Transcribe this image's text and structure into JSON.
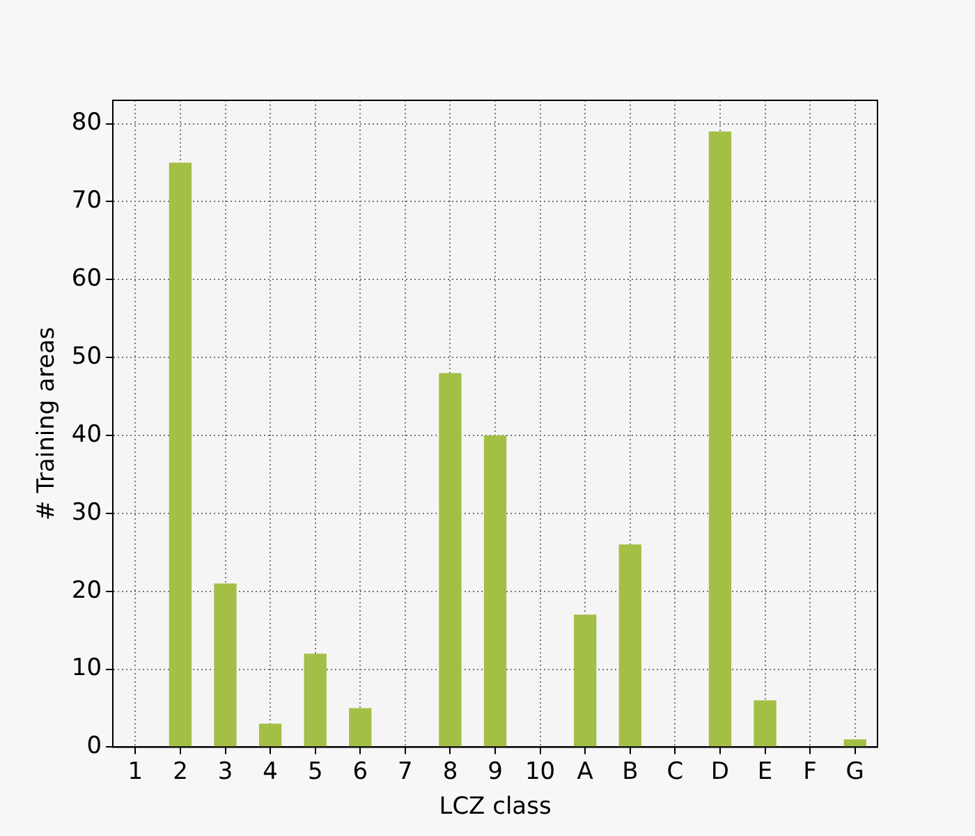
{
  "chart_data": {
    "type": "bar",
    "xlabel": "LCZ class",
    "ylabel": "# Training areas",
    "categories": [
      "1",
      "2",
      "3",
      "4",
      "5",
      "6",
      "7",
      "8",
      "9",
      "10",
      "A",
      "B",
      "C",
      "D",
      "E",
      "F",
      "G"
    ],
    "values": [
      0,
      75,
      21,
      3,
      12,
      5,
      0,
      48,
      40,
      0,
      17,
      26,
      0,
      79,
      6,
      0,
      1
    ],
    "color": "#a4bf45",
    "ylim": [
      0,
      83
    ],
    "yticks": [
      0,
      10,
      20,
      30,
      40,
      50,
      60,
      70,
      80
    ],
    "grid": true,
    "legend": false
  }
}
